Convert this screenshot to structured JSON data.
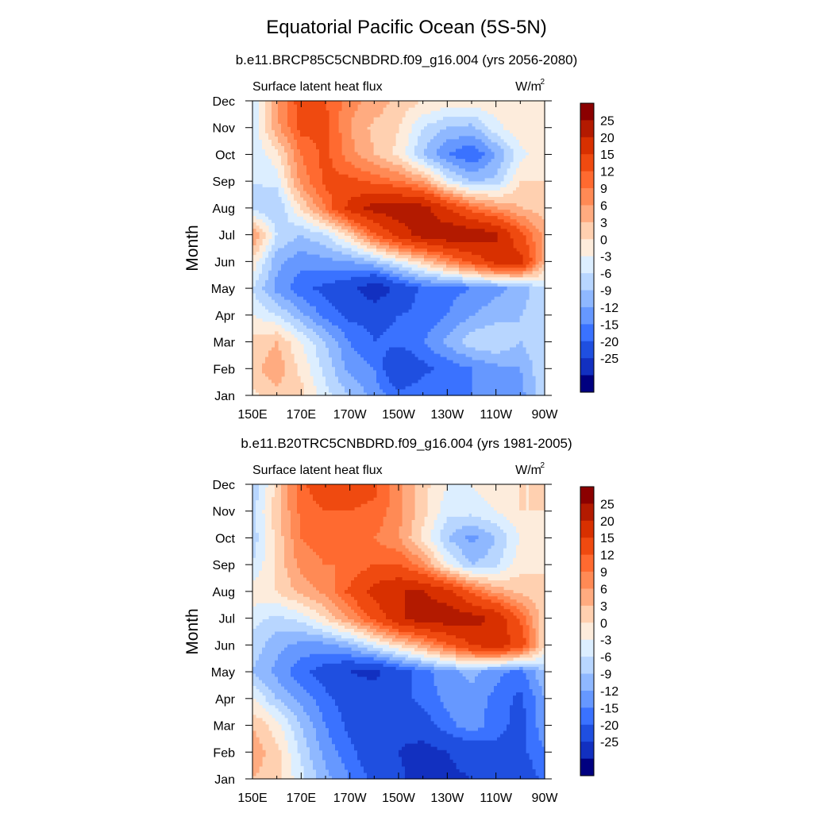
{
  "figure": {
    "title": "Equatorial Pacific Ocean (5S-5N)"
  },
  "colors": {
    "levels": [
      -25,
      -20,
      -15,
      -12,
      -9,
      -6,
      -3,
      0,
      3,
      6,
      9,
      12,
      15,
      20,
      25
    ],
    "colorbar_labels": [
      "25",
      "20",
      "15",
      "12",
      "9",
      "6",
      "3",
      "0",
      "-3",
      "-6",
      "-9",
      "-12",
      "-15",
      "-20",
      "-25"
    ],
    "palette": [
      "#8b0000",
      "#b31a00",
      "#d83000",
      "#ef4a10",
      "#ff6a30",
      "#ff8a55",
      "#ffab80",
      "#ffd0b0",
      "#fdecdc",
      "#dceeff",
      "#b8d6ff",
      "#8fb8ff",
      "#6698ff",
      "#3a72ff",
      "#1f4fe0",
      "#1230c0",
      "#000080"
    ]
  },
  "chart_data": [
    {
      "type": "heatmap",
      "title": "b.e11.BRCP85C5CNBDRD.f09_g16.004 (yrs 2056-2080)",
      "left_label": "Surface latent heat flux",
      "units_label": "W/m",
      "units_superscript": "2",
      "ylabel": "Month",
      "x_ticks": [
        "150E",
        "170E",
        "170W",
        "150W",
        "130W",
        "110W",
        "90W"
      ],
      "x_tick_lon": [
        150,
        170,
        190,
        210,
        230,
        250,
        270
      ],
      "xlim": [
        150,
        270
      ],
      "y_ticks": [
        "Jan",
        "Feb",
        "Mar",
        "Apr",
        "May",
        "Jun",
        "Jul",
        "Aug",
        "Sep",
        "Oct",
        "Nov",
        "Dec"
      ],
      "ylim": [
        1,
        12
      ],
      "grid_lon": [
        150,
        160,
        170,
        180,
        190,
        200,
        210,
        220,
        230,
        240,
        250,
        260,
        270
      ],
      "grid_month": [
        1,
        2,
        3,
        4,
        5,
        6,
        7,
        8,
        9,
        10,
        11,
        12
      ],
      "values": [
        [
          2,
          5,
          4,
          -2,
          -6,
          -10,
          -14,
          -12,
          -12,
          -12,
          -10,
          -10,
          -4
        ],
        [
          5,
          8,
          2,
          -4,
          -10,
          -12,
          -20,
          -16,
          -14,
          -12,
          -10,
          -9,
          -3
        ],
        [
          4,
          6,
          0,
          -6,
          -12,
          -15,
          -14,
          -12,
          -8,
          -4,
          -3,
          -6,
          -3
        ],
        [
          0,
          -3,
          -8,
          -13,
          -16,
          -16,
          -15,
          -14,
          -12,
          -9,
          -7,
          -6,
          -3
        ],
        [
          -3,
          -10,
          -14,
          -16,
          -18,
          -24,
          -18,
          -14,
          -13,
          -12,
          -10,
          -8,
          -3
        ],
        [
          2,
          -8,
          -11,
          -10,
          -9,
          -6,
          -1,
          4,
          10,
          16,
          22,
          22,
          6
        ],
        [
          10,
          -3,
          -6,
          -3,
          4,
          14,
          22,
          27,
          29,
          29,
          26,
          16,
          8
        ],
        [
          -4,
          -6,
          3,
          12,
          22,
          27,
          28,
          27,
          20,
          13,
          9,
          6,
          4
        ],
        [
          -3,
          -2,
          10,
          16,
          16,
          14,
          12,
          8,
          -1,
          -6,
          -5,
          3,
          3
        ],
        [
          -3,
          2,
          12,
          16,
          10,
          6,
          2,
          -6,
          -12,
          -15,
          -9,
          -1,
          2
        ],
        [
          -2,
          8,
          16,
          16,
          9,
          5,
          3,
          -3,
          -6,
          -7,
          -1,
          2,
          3
        ],
        [
          -3,
          9,
          17,
          15,
          10,
          8,
          5,
          3,
          2,
          2,
          2,
          3,
          3
        ]
      ]
    },
    {
      "type": "heatmap",
      "title": "b.e11.B20TRC5CNBDRD.f09_g16.004 (yrs 1981-2005)",
      "left_label": "Surface latent heat flux",
      "units_label": "W/m",
      "units_superscript": "2",
      "ylabel": "Month",
      "x_ticks": [
        "150E",
        "170E",
        "170W",
        "150W",
        "130W",
        "110W",
        "90W"
      ],
      "x_tick_lon": [
        150,
        170,
        190,
        210,
        230,
        250,
        270
      ],
      "xlim": [
        150,
        270
      ],
      "y_ticks": [
        "Jan",
        "Feb",
        "Mar",
        "Apr",
        "May",
        "Jun",
        "Jul",
        "Aug",
        "Sep",
        "Oct",
        "Nov",
        "Dec"
      ],
      "ylim": [
        1,
        12
      ],
      "grid_lon": [
        150,
        160,
        170,
        180,
        190,
        200,
        210,
        220,
        230,
        240,
        250,
        260,
        270
      ],
      "grid_month": [
        1,
        2,
        3,
        4,
        5,
        6,
        7,
        8,
        9,
        10,
        11,
        12
      ],
      "values": [
        [
          6,
          4,
          -2,
          -8,
          -12,
          -16,
          -19,
          -22,
          -21,
          -20,
          -19,
          -18,
          -14
        ],
        [
          8,
          4,
          -4,
          -10,
          -14,
          -18,
          -20,
          -22,
          -20,
          -18,
          -16,
          -16,
          -12
        ],
        [
          6,
          1,
          -6,
          -12,
          -16,
          -20,
          -19,
          -17,
          -13,
          -10,
          -14,
          -16,
          -10
        ],
        [
          0,
          -6,
          -10,
          -14,
          -17,
          -18,
          -16,
          -14,
          -11,
          -10,
          -13,
          -16,
          -9
        ],
        [
          -6,
          -10,
          -14,
          -17,
          -20,
          -21,
          -17,
          -13,
          -10,
          -8,
          -11,
          -13,
          -6
        ],
        [
          -4,
          -8,
          -10,
          -10,
          -7,
          -2,
          3,
          8,
          14,
          20,
          23,
          18,
          3
        ],
        [
          -2,
          -4,
          -2,
          3,
          9,
          16,
          24,
          28,
          28,
          27,
          24,
          14,
          4
        ],
        [
          2,
          3,
          7,
          10,
          16,
          22,
          25,
          25,
          22,
          14,
          8,
          5,
          3
        ],
        [
          -3,
          4,
          10,
          12,
          12,
          15,
          15,
          10,
          0,
          -6,
          -4,
          2,
          3
        ],
        [
          -5,
          4,
          12,
          14,
          12,
          12,
          9,
          2,
          -6,
          -10,
          -6,
          0,
          3
        ],
        [
          -4,
          5,
          13,
          15,
          15,
          14,
          10,
          4,
          -2,
          -2,
          0,
          3,
          3
        ],
        [
          -6,
          4,
          14,
          18,
          17,
          16,
          10,
          4,
          0,
          0,
          2,
          3,
          3
        ]
      ]
    }
  ]
}
